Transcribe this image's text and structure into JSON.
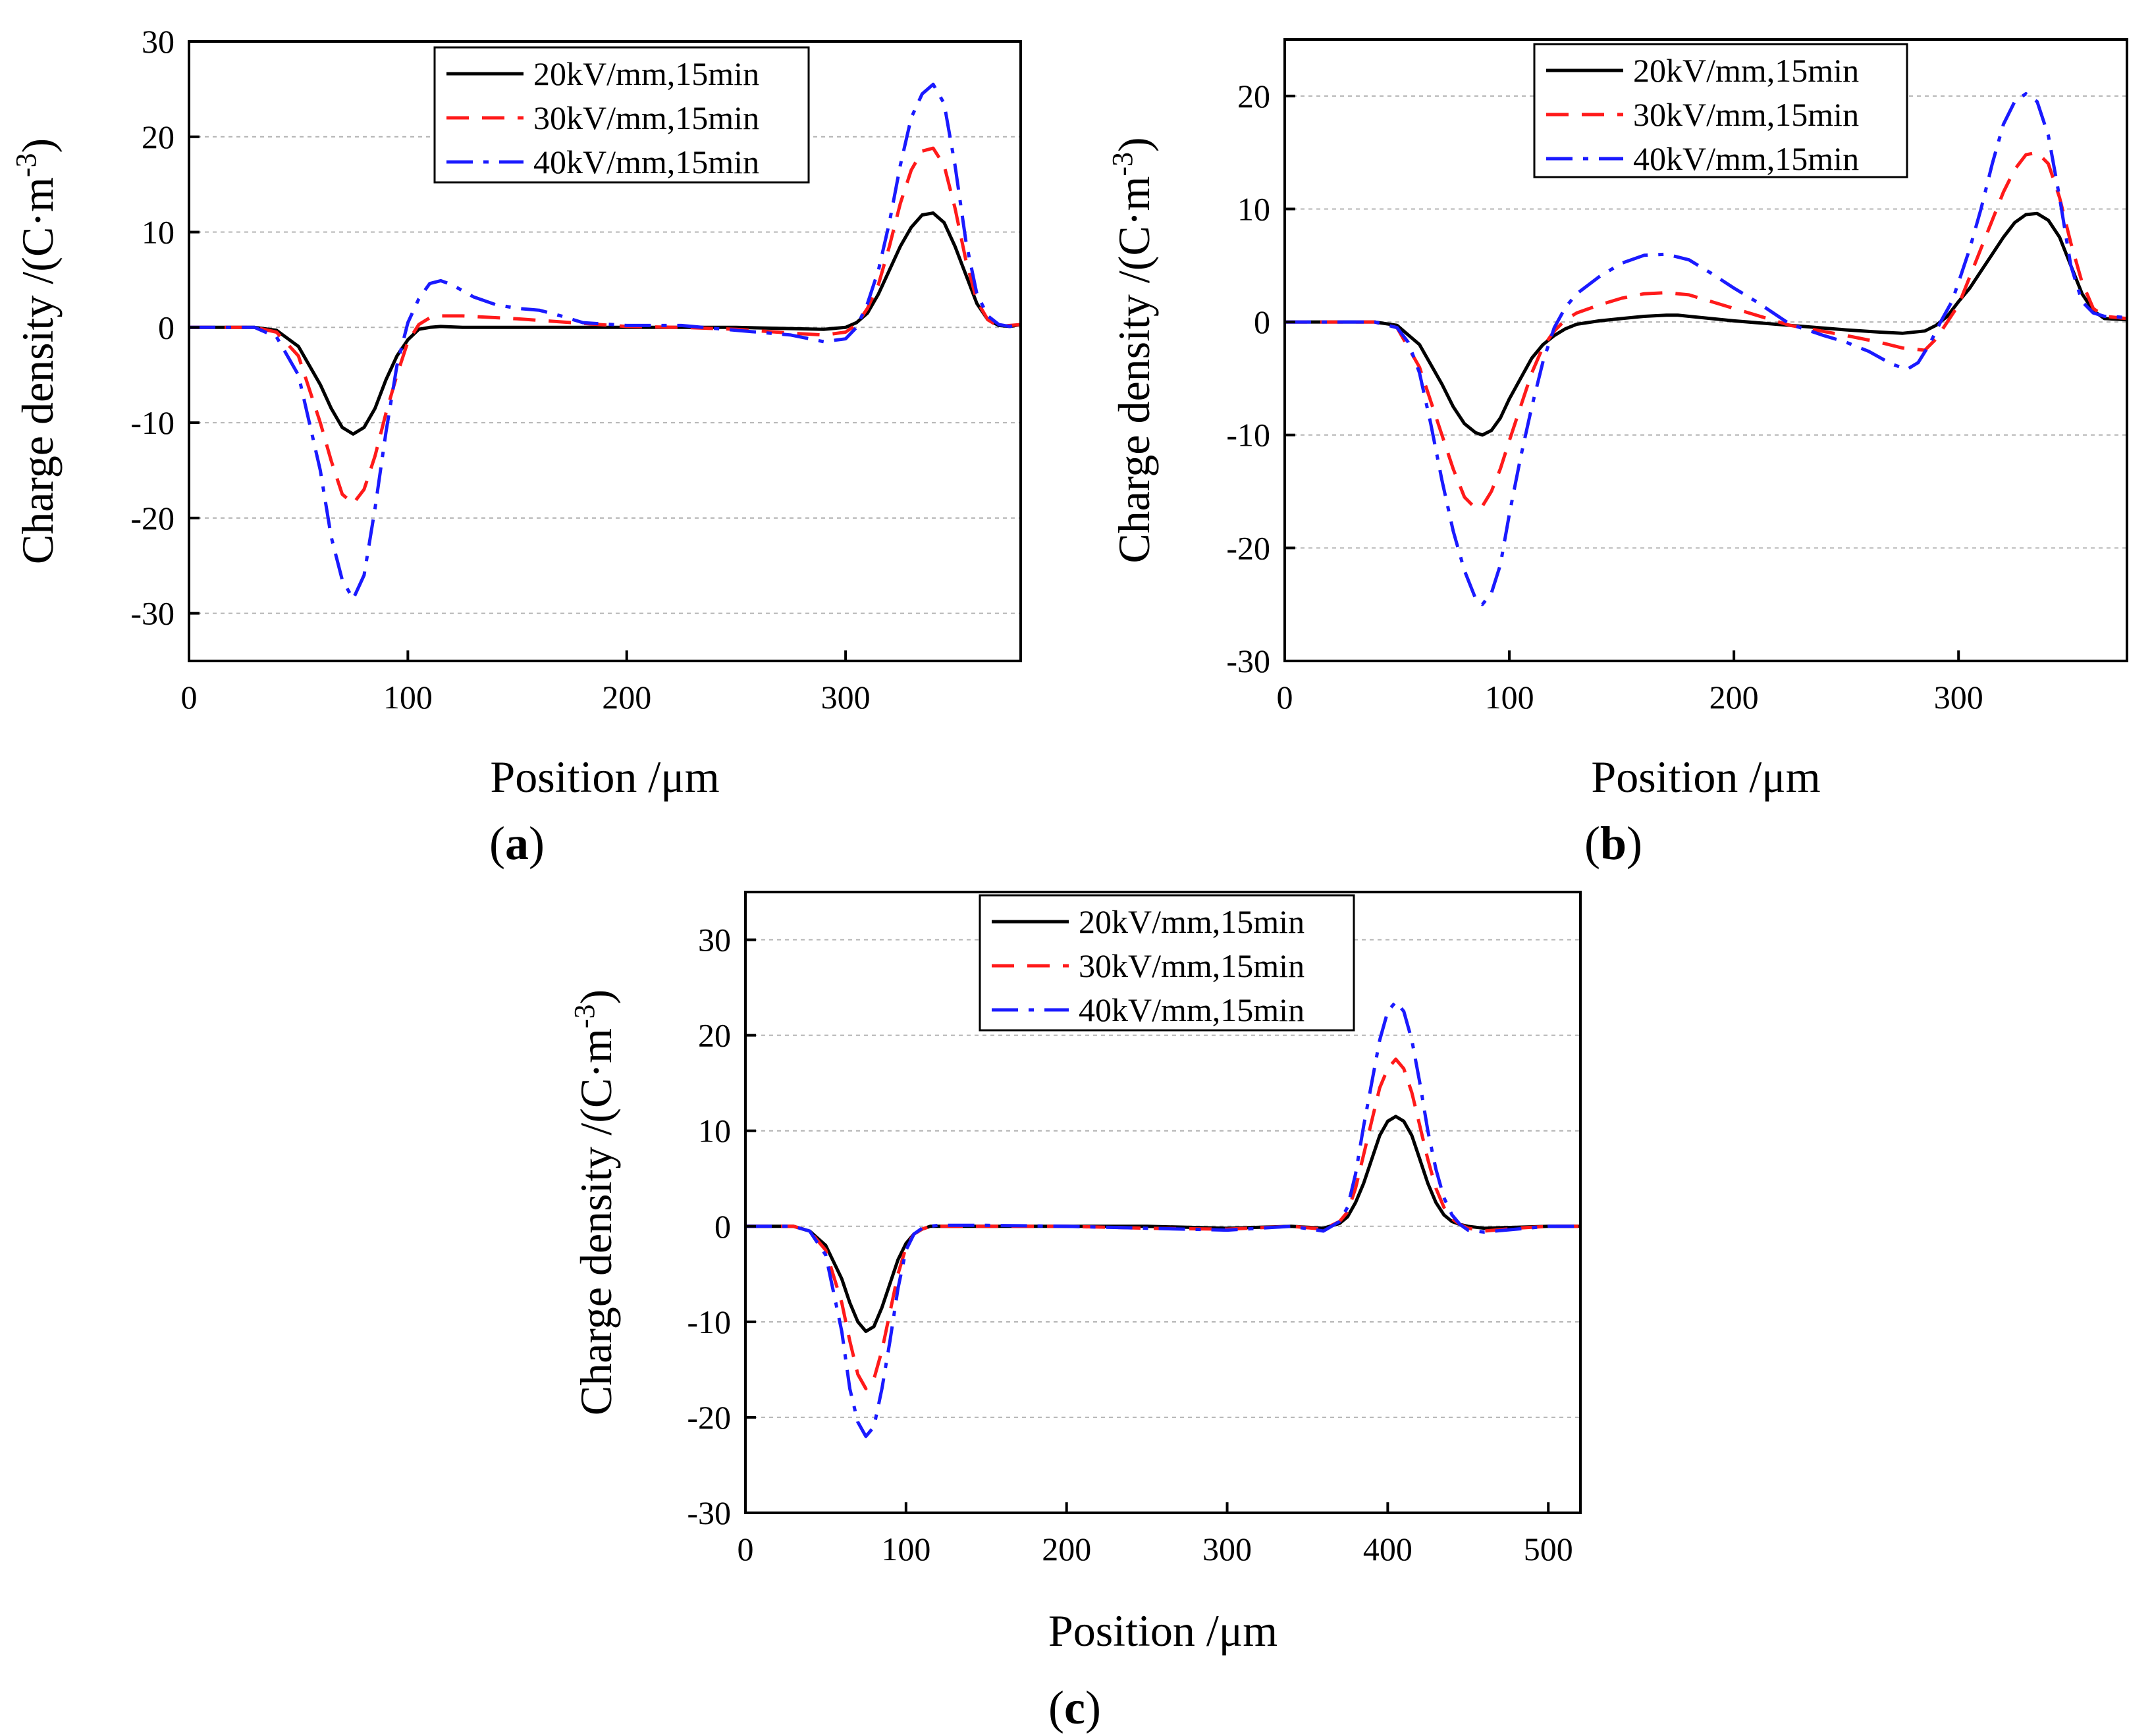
{
  "figure": {
    "panel_labels": [
      "a",
      "b",
      "c"
    ]
  },
  "styles": {
    "series_colors": [
      "#000000",
      "#ff1a1a",
      "#1a1aff"
    ],
    "grid_color": "#b3b3b3"
  },
  "chart_data": [
    {
      "panel": "a",
      "type": "line",
      "title": "",
      "xlabel": "Position /μm",
      "ylabel": "Charge density /(C·m",
      "ylabel_sup": "-3",
      "ylabel_close": ")",
      "xlim": [
        0,
        380
      ],
      "ylim": [
        -35,
        30
      ],
      "xticks": [
        0,
        100,
        200,
        300
      ],
      "yticks": [
        -30,
        -20,
        -10,
        0,
        10,
        20,
        30
      ],
      "grid": "horizontal dotted",
      "legend_position": "top-center",
      "series": [
        {
          "name": "20kV/mm,15min",
          "style": "solid",
          "x": [
            0,
            30,
            40,
            50,
            60,
            65,
            70,
            75,
            80,
            85,
            90,
            95,
            100,
            105,
            110,
            115,
            125,
            150,
            200,
            250,
            290,
            300,
            305,
            310,
            315,
            320,
            325,
            330,
            335,
            340,
            345,
            350,
            355,
            360,
            365,
            370,
            375,
            380
          ],
          "y": [
            0,
            0,
            -0.3,
            -2,
            -6,
            -8.5,
            -10.5,
            -11.2,
            -10.5,
            -8.5,
            -5.5,
            -3,
            -1.3,
            -0.2,
            0,
            0.1,
            0,
            0,
            0,
            0,
            -0.2,
            0,
            0.5,
            1.5,
            3.5,
            6,
            8.5,
            10.5,
            11.8,
            12,
            11,
            8.5,
            5.5,
            2.5,
            0.8,
            0.2,
            0.1,
            0.3
          ]
        },
        {
          "name": "30kV/mm,15min",
          "style": "dashed",
          "x": [
            0,
            30,
            40,
            50,
            60,
            65,
            70,
            75,
            80,
            85,
            90,
            95,
            100,
            105,
            110,
            115,
            125,
            150,
            175,
            200,
            225,
            250,
            275,
            290,
            300,
            305,
            310,
            315,
            320,
            325,
            330,
            335,
            340,
            345,
            350,
            355,
            360,
            365,
            370,
            375,
            380
          ],
          "y": [
            0,
            0,
            -0.5,
            -3,
            -10,
            -14,
            -17.5,
            -18.5,
            -17,
            -13.5,
            -9,
            -5,
            -1.5,
            0.3,
            1,
            1.2,
            1.2,
            0.9,
            0.5,
            0.1,
            0,
            -0.2,
            -0.6,
            -0.8,
            -0.5,
            0.3,
            2,
            4.5,
            8.5,
            13,
            16.5,
            18.5,
            18.8,
            17,
            12.5,
            7,
            2.8,
            0.8,
            0.1,
            0.2,
            0.3
          ]
        },
        {
          "name": "40kV/mm,15min",
          "style": "dashdot",
          "x": [
            0,
            30,
            40,
            50,
            60,
            65,
            70,
            75,
            80,
            85,
            90,
            95,
            100,
            105,
            110,
            115,
            120,
            130,
            140,
            150,
            160,
            170,
            180,
            200,
            225,
            250,
            275,
            290,
            300,
            305,
            310,
            315,
            320,
            325,
            330,
            335,
            340,
            345,
            350,
            355,
            360,
            365,
            370,
            375,
            380
          ],
          "y": [
            0,
            0,
            -1,
            -5,
            -15,
            -22,
            -26.5,
            -28.5,
            -26,
            -19,
            -11,
            -4,
            0.5,
            3,
            4.6,
            4.9,
            4.5,
            3.2,
            2.4,
            2,
            1.8,
            1.2,
            0.5,
            0.2,
            0.2,
            -0.3,
            -0.8,
            -1.5,
            -1.2,
            0,
            2.5,
            6,
            11,
            17,
            22,
            24.5,
            25.5,
            23.5,
            17,
            9,
            3.5,
            1.2,
            0.3,
            0.1,
            0.3
          ]
        }
      ]
    },
    {
      "panel": "b",
      "type": "line",
      "title": "",
      "xlabel": "Position /μm",
      "ylabel": "Charge density /(C·m",
      "ylabel_sup": "-3",
      "ylabel_close": ")",
      "xlim": [
        0,
        375
      ],
      "ylim": [
        -30,
        25
      ],
      "xticks": [
        0,
        100,
        200,
        300
      ],
      "yticks": [
        -30,
        -20,
        -10,
        0,
        10,
        20
      ],
      "grid": "horizontal dotted",
      "legend_position": "top-center",
      "series": [
        {
          "name": "20kV/mm,15min",
          "style": "solid",
          "x": [
            0,
            40,
            50,
            60,
            70,
            75,
            80,
            85,
            88,
            92,
            96,
            100,
            105,
            110,
            115,
            120,
            125,
            130,
            140,
            150,
            160,
            170,
            175,
            180,
            200,
            225,
            250,
            265,
            275,
            285,
            290,
            295,
            300,
            305,
            310,
            315,
            320,
            325,
            330,
            335,
            340,
            345,
            350,
            355,
            360,
            365,
            375
          ],
          "y": [
            0,
            0,
            -0.3,
            -2,
            -5.5,
            -7.5,
            -9,
            -9.8,
            -10,
            -9.6,
            -8.5,
            -6.8,
            -5,
            -3.2,
            -2,
            -1.2,
            -0.6,
            -0.2,
            0.1,
            0.3,
            0.5,
            0.6,
            0.6,
            0.5,
            0.1,
            -0.3,
            -0.7,
            -0.9,
            -1,
            -0.8,
            -0.3,
            0.5,
            1.8,
            3,
            4.5,
            6,
            7.5,
            8.8,
            9.5,
            9.6,
            9,
            7.5,
            5,
            2.5,
            1,
            0.3,
            0.2
          ]
        },
        {
          "name": "30kV/mm,15min",
          "style": "dashed",
          "x": [
            0,
            40,
            50,
            60,
            70,
            75,
            80,
            85,
            88,
            92,
            96,
            100,
            105,
            110,
            115,
            120,
            125,
            130,
            140,
            150,
            160,
            170,
            180,
            200,
            225,
            250,
            265,
            275,
            285,
            290,
            295,
            300,
            305,
            310,
            315,
            320,
            325,
            330,
            335,
            340,
            345,
            350,
            355,
            360,
            365,
            375
          ],
          "y": [
            0,
            0,
            -0.5,
            -4,
            -10,
            -13,
            -15.5,
            -16.5,
            -16.3,
            -15,
            -13,
            -10.5,
            -7.5,
            -4.5,
            -2.2,
            -0.8,
            0.2,
            0.8,
            1.5,
            2.1,
            2.5,
            2.6,
            2.4,
            1.2,
            -0.3,
            -1.2,
            -1.8,
            -2.3,
            -2.5,
            -1.5,
            0,
            1.5,
            4,
            6.5,
            9,
            11.5,
            13.5,
            14.8,
            15,
            14,
            11,
            7,
            3.5,
            1.2,
            0.5,
            0.3
          ]
        },
        {
          "name": "40kV/mm,15min",
          "style": "dashdot",
          "x": [
            0,
            40,
            50,
            55,
            60,
            65,
            70,
            75,
            80,
            85,
            88,
            92,
            96,
            100,
            105,
            110,
            115,
            120,
            125,
            130,
            140,
            150,
            160,
            170,
            180,
            190,
            200,
            210,
            225,
            240,
            250,
            260,
            270,
            277,
            282,
            287,
            292,
            297,
            300,
            305,
            310,
            315,
            320,
            325,
            330,
            335,
            340,
            345,
            350,
            355,
            360,
            365,
            375
          ],
          "y": [
            0,
            0,
            -0.5,
            -1.8,
            -4.5,
            -9,
            -14,
            -18.5,
            -22,
            -24.5,
            -25,
            -24,
            -21.5,
            -17,
            -12,
            -7.5,
            -3.5,
            -0.5,
            1.3,
            2.5,
            4,
            5.2,
            5.9,
            6,
            5.5,
            4.3,
            3,
            1.8,
            -0.2,
            -1.2,
            -1.8,
            -2.6,
            -3.7,
            -4.2,
            -3.6,
            -2,
            0,
            1.8,
            3.5,
            6.5,
            10,
            14,
            17.5,
            19.5,
            20.2,
            19.5,
            16.5,
            11,
            5,
            1.8,
            0.8,
            0.5,
            0.4
          ]
        }
      ]
    },
    {
      "panel": "c",
      "type": "line",
      "title": "",
      "xlabel": "Position /μm",
      "ylabel": "Charge density /(C·m",
      "ylabel_sup": "-3",
      "ylabel_close": ")",
      "xlim": [
        0,
        520
      ],
      "ylim": [
        -30,
        35
      ],
      "xticks": [
        0,
        100,
        200,
        300,
        400,
        500
      ],
      "yticks": [
        -30,
        -20,
        -10,
        0,
        10,
        20,
        30
      ],
      "grid": "horizontal dotted",
      "legend_position": "top-center",
      "series": [
        {
          "name": "20kV/mm,15min",
          "style": "solid",
          "x": [
            0,
            30,
            40,
            50,
            60,
            65,
            70,
            75,
            80,
            85,
            90,
            95,
            100,
            105,
            110,
            115,
            120,
            150,
            200,
            250,
            300,
            340,
            360,
            370,
            375,
            380,
            385,
            390,
            395,
            400,
            405,
            410,
            415,
            420,
            425,
            430,
            435,
            440,
            445,
            450,
            460,
            480,
            500,
            520
          ],
          "y": [
            0,
            0,
            -0.5,
            -2,
            -5.5,
            -8,
            -10,
            -11,
            -10.5,
            -8.5,
            -6,
            -3.5,
            -1.8,
            -0.8,
            -0.3,
            0,
            0,
            0,
            0,
            0,
            -0.2,
            0,
            -0.2,
            0.3,
            1,
            2.5,
            4.5,
            7,
            9.5,
            11,
            11.5,
            11,
            9.5,
            7,
            4.5,
            2.5,
            1.2,
            0.5,
            0.2,
            0,
            -0.2,
            -0.1,
            0,
            0
          ]
        },
        {
          "name": "30kV/mm,15min",
          "style": "dashed",
          "x": [
            0,
            30,
            40,
            50,
            60,
            65,
            70,
            75,
            80,
            85,
            90,
            95,
            100,
            105,
            110,
            115,
            120,
            150,
            200,
            250,
            300,
            340,
            360,
            370,
            375,
            380,
            385,
            390,
            395,
            400,
            405,
            410,
            415,
            420,
            425,
            430,
            435,
            440,
            445,
            450,
            460,
            480,
            500,
            520
          ],
          "y": [
            0,
            0,
            -0.5,
            -2.5,
            -8,
            -12,
            -15.5,
            -17,
            -16,
            -13,
            -9,
            -5,
            -2.2,
            -0.8,
            -0.3,
            0,
            0,
            0,
            0,
            -0.2,
            -0.3,
            0,
            -0.3,
            0.5,
            1.5,
            4,
            7.5,
            11,
            14.5,
            16.5,
            17.5,
            16.5,
            14,
            10.5,
            7,
            4,
            2,
            0.8,
            0.2,
            -0.2,
            -0.5,
            -0.2,
            0,
            0
          ]
        },
        {
          "name": "40kV/mm,15min",
          "style": "dashdot",
          "x": [
            0,
            30,
            40,
            50,
            60,
            65,
            70,
            75,
            80,
            85,
            90,
            95,
            100,
            105,
            110,
            115,
            120,
            150,
            200,
            250,
            300,
            340,
            360,
            370,
            375,
            380,
            385,
            390,
            395,
            400,
            405,
            410,
            415,
            420,
            425,
            430,
            435,
            440,
            445,
            450,
            460,
            480,
            500,
            520
          ],
          "y": [
            0,
            0,
            -0.5,
            -3,
            -11,
            -17,
            -20.5,
            -22,
            -21,
            -17,
            -12,
            -6.5,
            -2.5,
            -0.8,
            -0.2,
            0,
            0.1,
            0.1,
            0,
            -0.2,
            -0.4,
            0,
            -0.5,
            0.5,
            2,
            5.5,
            10.5,
            15,
            19.5,
            22.5,
            23.5,
            22.5,
            19.5,
            15,
            10,
            6,
            3,
            1.2,
            0.2,
            -0.4,
            -0.6,
            -0.3,
            0,
            0
          ]
        }
      ]
    }
  ]
}
